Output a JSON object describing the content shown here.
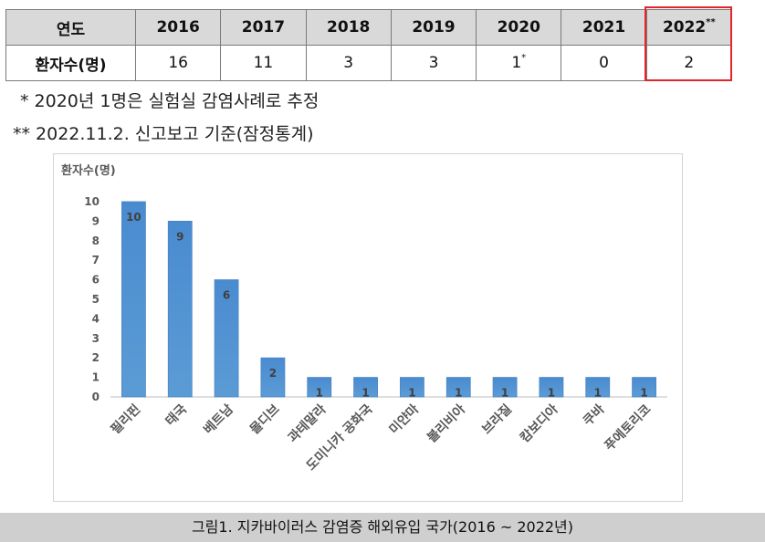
{
  "table": {
    "header_label": "연도",
    "years": [
      {
        "year": "2016",
        "sup": ""
      },
      {
        "year": "2017",
        "sup": ""
      },
      {
        "year": "2018",
        "sup": ""
      },
      {
        "year": "2019",
        "sup": ""
      },
      {
        "year": "2020",
        "sup": ""
      },
      {
        "year": "2021",
        "sup": ""
      },
      {
        "year": "2022",
        "sup": "**"
      }
    ],
    "row_label": "환자수(명)",
    "counts": [
      {
        "value": "16",
        "sup": ""
      },
      {
        "value": "11",
        "sup": ""
      },
      {
        "value": "3",
        "sup": ""
      },
      {
        "value": "3",
        "sup": ""
      },
      {
        "value": "1",
        "sup": "*"
      },
      {
        "value": "0",
        "sup": ""
      },
      {
        "value": "2",
        "sup": ""
      }
    ],
    "highlight_color": "#e3242b"
  },
  "notes": [
    "* 2020년 1명은 실험실 감염사례로 추정",
    "** 2022.11.2. 신고보고 기준(잠정통계)"
  ],
  "chart_data": {
    "type": "bar",
    "ylabel": "환자수(명)",
    "categories": [
      "필리핀",
      "태국",
      "베트남",
      "몰디브",
      "과테말라",
      "도미니카 공화국",
      "미얀마",
      "볼리비아",
      "브라질",
      "캄보디아",
      "쿠바",
      "푸에토리코"
    ],
    "values": [
      10,
      9,
      6,
      2,
      1,
      1,
      1,
      1,
      1,
      1,
      1,
      1
    ],
    "ylim": [
      0,
      10
    ],
    "yticks": [
      0,
      1,
      2,
      3,
      4,
      5,
      6,
      7,
      8,
      9,
      10
    ],
    "bar_color": "#5b9bd5",
    "grid": false,
    "data_labels": true
  },
  "caption": "그림1. 지카바이러스 감염증 해외유입 국가(2016 ~ 2022년)"
}
